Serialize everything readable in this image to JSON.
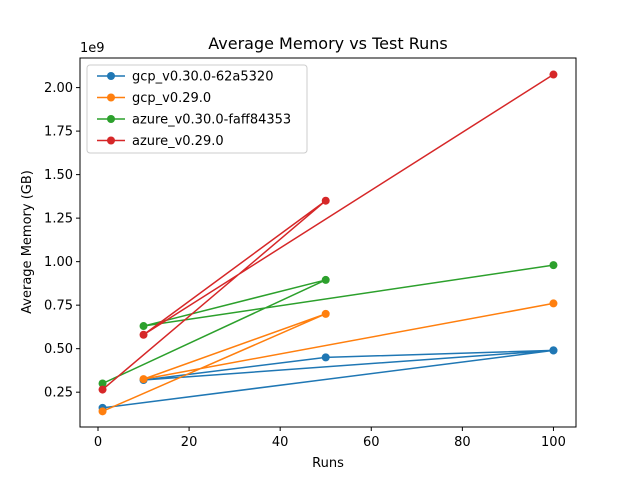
{
  "chart_data": {
    "type": "line",
    "title": "Average Memory vs Test Runs",
    "xlabel": "Runs",
    "ylabel": "Average Memory (GB)",
    "y_offset_label": "1e9",
    "xlim": [
      -3.95,
      104.95
    ],
    "ylim": [
      50000000,
      2170000000
    ],
    "x_ticks": [
      0,
      20,
      40,
      60,
      80,
      100
    ],
    "x_tick_labels": [
      "0",
      "20",
      "40",
      "60",
      "80",
      "100"
    ],
    "y_ticks": [
      250000000,
      500000000,
      750000000,
      1000000000,
      1250000000,
      1500000000,
      1750000000,
      2000000000
    ],
    "y_tick_labels": [
      "0.25",
      "0.50",
      "0.75",
      "1.00",
      "1.25",
      "1.50",
      "1.75",
      "2.00"
    ],
    "grid": false,
    "legend_position": "top-left",
    "series": [
      {
        "name": "gcp_v0.30.0-62a5320",
        "color": "#1f77b4",
        "x": [
          1,
          100,
          10,
          50,
          100
        ],
        "y": [
          160000000,
          490000000,
          320000000,
          450000000,
          490000000
        ]
      },
      {
        "name": "gcp_v0.29.0",
        "color": "#ff7f0e",
        "x": [
          1,
          50,
          10,
          100
        ],
        "y": [
          140000000,
          700000000,
          325000000,
          760000000
        ]
      },
      {
        "name": "azure_v0.30.0-faff84353",
        "color": "#2ca02c",
        "x": [
          1,
          50,
          10,
          100
        ],
        "y": [
          300000000,
          895000000,
          630000000,
          980000000
        ]
      },
      {
        "name": "azure_v0.29.0",
        "color": "#d62728",
        "x": [
          1,
          50,
          10,
          100
        ],
        "y": [
          265000000,
          1350000000,
          580000000,
          2075000000
        ]
      }
    ]
  }
}
